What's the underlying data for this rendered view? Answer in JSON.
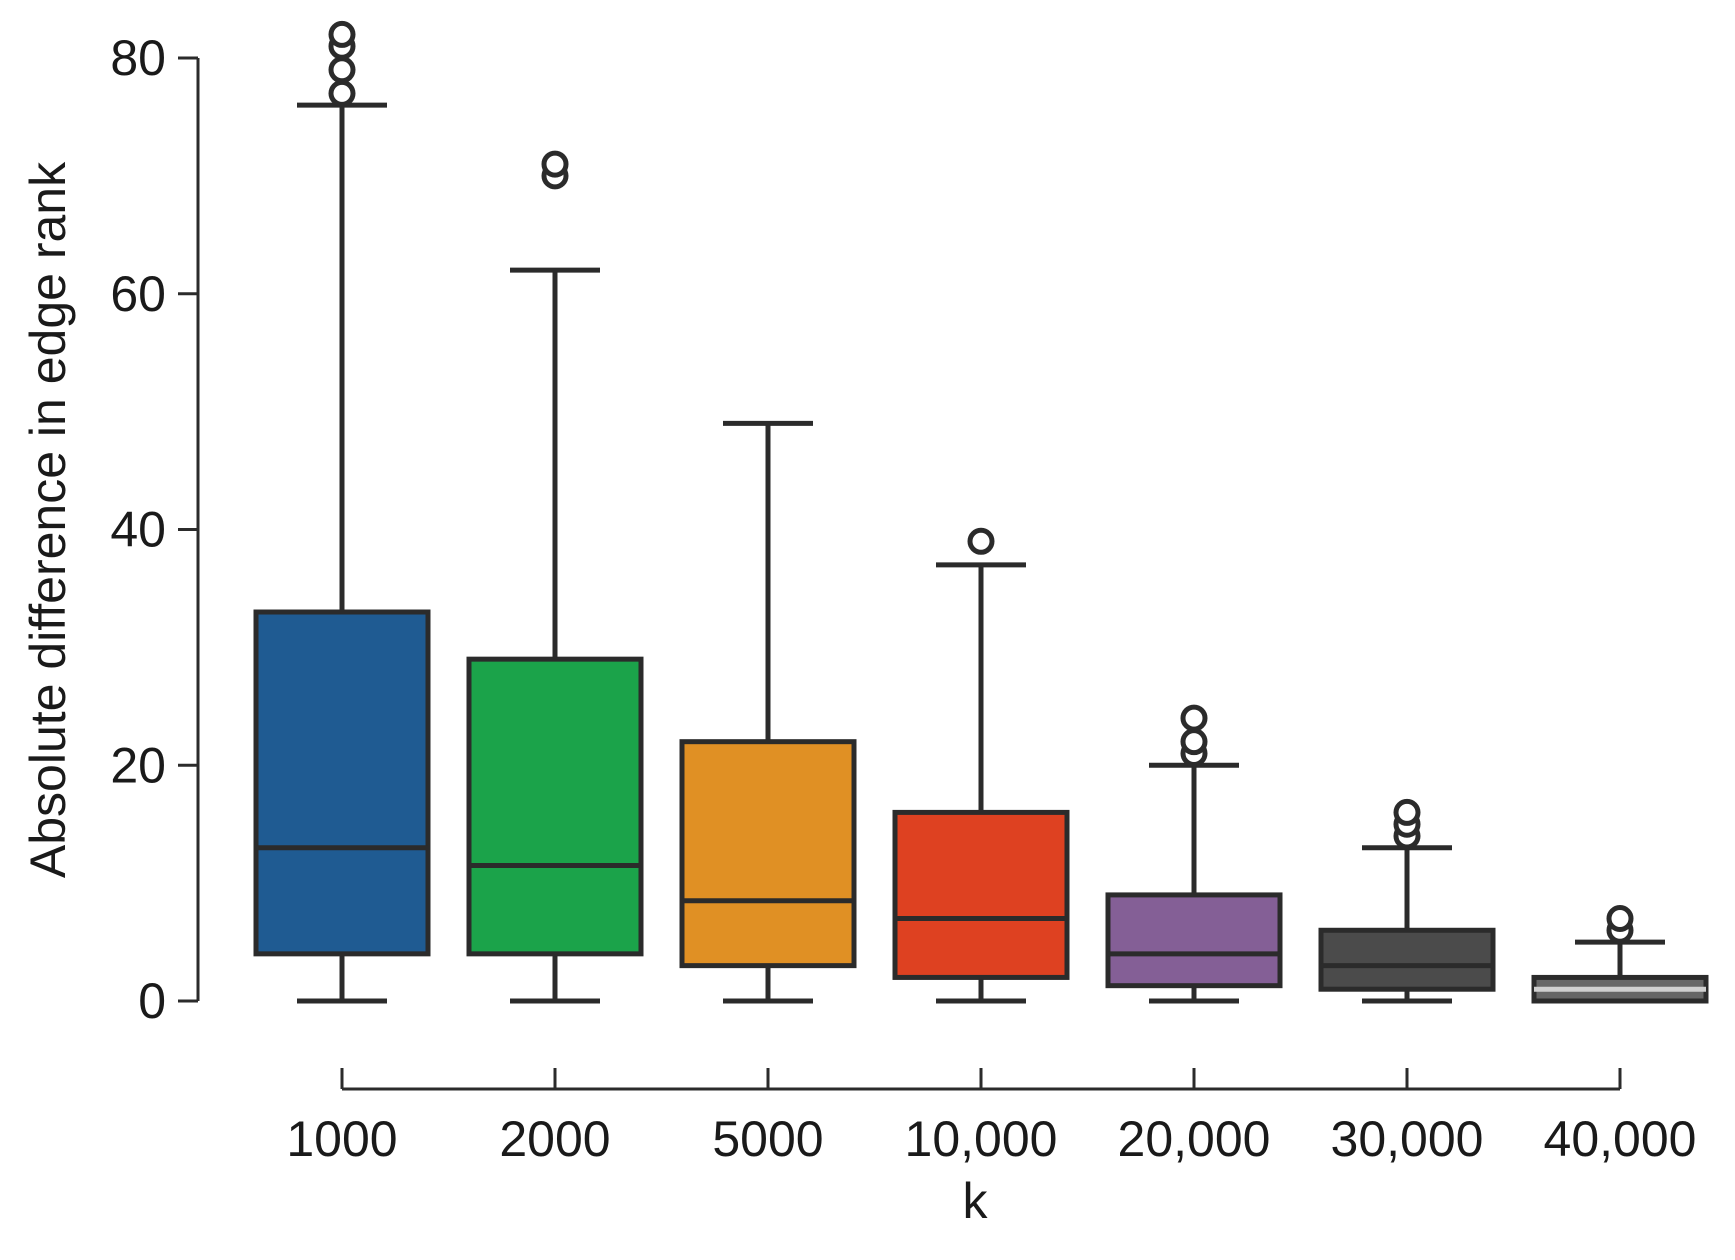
{
  "chart_data": {
    "type": "box",
    "title": "",
    "xlabel": "k",
    "ylabel": "Absolute difference in edge rank",
    "categories": [
      "1000",
      "2000",
      "5000",
      "10,000",
      "20,000",
      "30,000",
      "40,000"
    ],
    "ylim": [
      0,
      80
    ],
    "yticks": [
      0,
      20,
      40,
      60,
      80
    ],
    "ytick_labels": [
      "0",
      "20",
      "40",
      "60",
      "80"
    ],
    "grid": false,
    "series": [
      {
        "category": "1000",
        "color": "#1f5b92",
        "min": 0,
        "q1": 4,
        "median": 13,
        "q3": 33,
        "max": 76,
        "outliers": [
          77,
          79,
          81,
          82
        ]
      },
      {
        "category": "2000",
        "color": "#1ba34a",
        "min": 0,
        "q1": 4,
        "median": 11.5,
        "q3": 29,
        "max": 62,
        "outliers": [
          70,
          71
        ]
      },
      {
        "category": "5000",
        "color": "#e09024",
        "min": 0,
        "q1": 3,
        "median": 8.5,
        "q3": 22,
        "max": 49,
        "outliers": []
      },
      {
        "category": "10,000",
        "color": "#de4121",
        "min": 0,
        "q1": 2,
        "median": 7,
        "q3": 16,
        "max": 37,
        "outliers": [
          39
        ]
      },
      {
        "category": "20,000",
        "color": "#845f96",
        "min": 0,
        "q1": 1.3,
        "median": 4,
        "q3": 9,
        "max": 20,
        "outliers": [
          21,
          22,
          24
        ]
      },
      {
        "category": "30,000",
        "color": "#4b4b4b",
        "min": 0,
        "q1": 1,
        "median": 3,
        "q3": 6,
        "max": 13,
        "outliers": [
          14,
          15,
          16
        ]
      },
      {
        "category": "40,000",
        "color": "#666666",
        "min": 0,
        "q1": 0,
        "median": 1,
        "q3": 2,
        "max": 5,
        "outliers": [
          6,
          7
        ],
        "median_color": "#cfcfcf"
      }
    ]
  }
}
